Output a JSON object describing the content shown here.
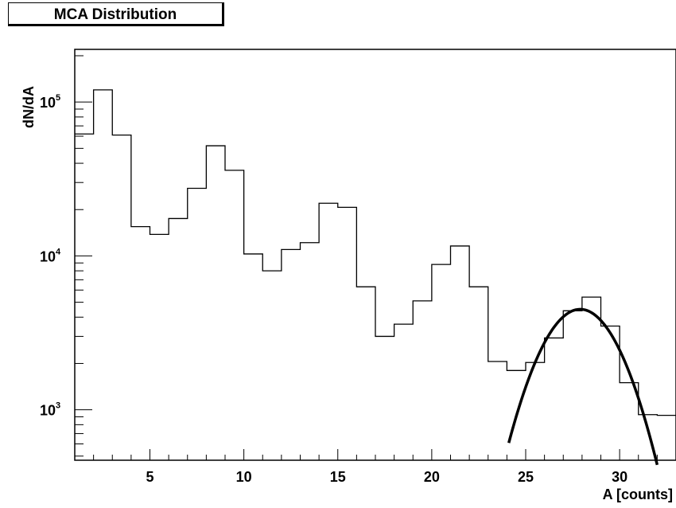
{
  "chart_data": {
    "type": "histogram",
    "title": "MCA Distribution",
    "xlabel": "A [counts]",
    "ylabel": "dN/dA",
    "ylog": true,
    "xlim": [
      1,
      33
    ],
    "ylim": [
      470,
      220000
    ],
    "grid": false,
    "bin_edges": [
      1,
      2,
      3,
      4,
      5,
      6,
      7,
      8,
      9,
      10,
      11,
      12,
      13,
      14,
      15,
      16,
      17,
      18,
      19,
      20,
      21,
      22,
      23,
      24,
      25,
      26,
      27,
      28,
      29,
      30,
      31,
      32,
      33
    ],
    "counts": [
      62000,
      120000,
      61000,
      15500,
      13800,
      17500,
      27500,
      52000,
      36000,
      10300,
      8000,
      11000,
      12200,
      22000,
      20700,
      6300,
      3000,
      3600,
      5100,
      8800,
      11600,
      6300,
      2060,
      1800,
      2030,
      2930,
      4400,
      5400,
      3500,
      1500,
      930,
      920
    ],
    "x_ticks": [
      5,
      10,
      15,
      20,
      25,
      30
    ],
    "y_ticks": [
      {
        "value": 1000,
        "base": "10",
        "exp": "3"
      },
      {
        "value": 10000,
        "base": "10",
        "exp": "4"
      },
      {
        "value": 100000,
        "base": "10",
        "exp": "5"
      }
    ],
    "fit": {
      "type": "gaussian",
      "amplitude": 4500,
      "mean": 27.9,
      "sigma": 1.9,
      "range": [
        24.1,
        32
      ]
    }
  }
}
